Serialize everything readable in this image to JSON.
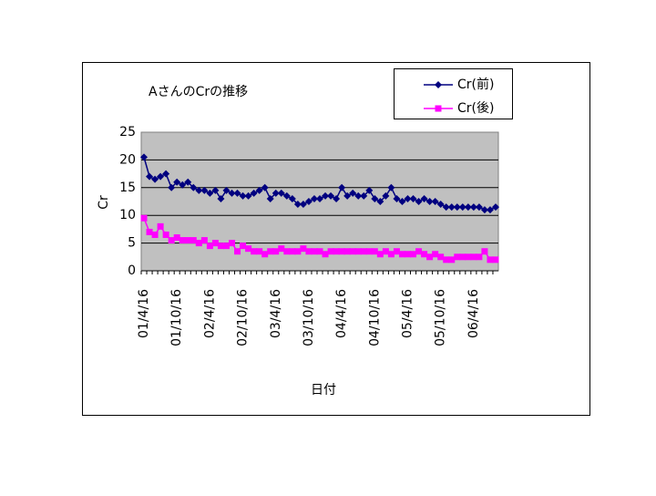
{
  "chart_data": {
    "type": "line",
    "title": "AさんのCrの推移",
    "x_label": "日付",
    "y_label": "Cr",
    "categories": [
      "01/4/16",
      null,
      null,
      null,
      null,
      null,
      "01/10/16",
      null,
      null,
      null,
      null,
      null,
      "02/4/16",
      null,
      null,
      null,
      null,
      null,
      "02/10/16",
      null,
      null,
      null,
      null,
      null,
      "03/4/16",
      null,
      null,
      null,
      null,
      null,
      "03/10/16",
      null,
      null,
      null,
      null,
      null,
      "04/4/16",
      null,
      null,
      null,
      null,
      null,
      "04/10/16",
      null,
      null,
      null,
      null,
      null,
      "05/4/16",
      null,
      null,
      null,
      null,
      null,
      "05/10/16",
      null,
      null,
      null,
      null,
      null,
      "06/4/16",
      null,
      null,
      null,
      null
    ],
    "series": [
      {
        "name": "Cr(前)",
        "color": "#000080",
        "marker": "diamond",
        "values": [
          20.5,
          17,
          16.5,
          17,
          17.5,
          15,
          16,
          15.5,
          16,
          15,
          14.5,
          14.5,
          14,
          14.5,
          13,
          14.5,
          14,
          14,
          13.5,
          13.5,
          14,
          14.5,
          15,
          13,
          14,
          14,
          13.5,
          13,
          12,
          12,
          12.5,
          13,
          13,
          13.5,
          13.5,
          13,
          15,
          13.5,
          14,
          13.5,
          13.5,
          14.5,
          13,
          12.5,
          13.5,
          15,
          13,
          12.5,
          13,
          13,
          12.5,
          13,
          12.5,
          12.5,
          12,
          11.5,
          11.5,
          11.5,
          11.5,
          11.5,
          11.5,
          11.5,
          11,
          11,
          11.5
        ]
      },
      {
        "name": "Cr(後)",
        "color": "#ff00ff",
        "marker": "square",
        "values": [
          9.5,
          7,
          6.5,
          8,
          6.5,
          5.5,
          6,
          5.5,
          5.5,
          5.5,
          5,
          5.5,
          4.5,
          5,
          4.5,
          4.5,
          5,
          3.5,
          4.5,
          4,
          3.5,
          3.5,
          3,
          3.5,
          3.5,
          4,
          3.5,
          3.5,
          3.5,
          4,
          3.5,
          3.5,
          3.5,
          3,
          3.5,
          3.5,
          3.5,
          3.5,
          3.5,
          3.5,
          3.5,
          3.5,
          3.5,
          3,
          3.5,
          3,
          3.5,
          3,
          3,
          3,
          3.5,
          3,
          2.5,
          3,
          2.5,
          2,
          2,
          2.5,
          2.5,
          2.5,
          2.5,
          2.5,
          3.5,
          2,
          2
        ]
      }
    ],
    "ylim": [
      0,
      25
    ],
    "yticks": [
      0,
      5,
      10,
      15,
      20,
      25
    ],
    "grid": true
  }
}
